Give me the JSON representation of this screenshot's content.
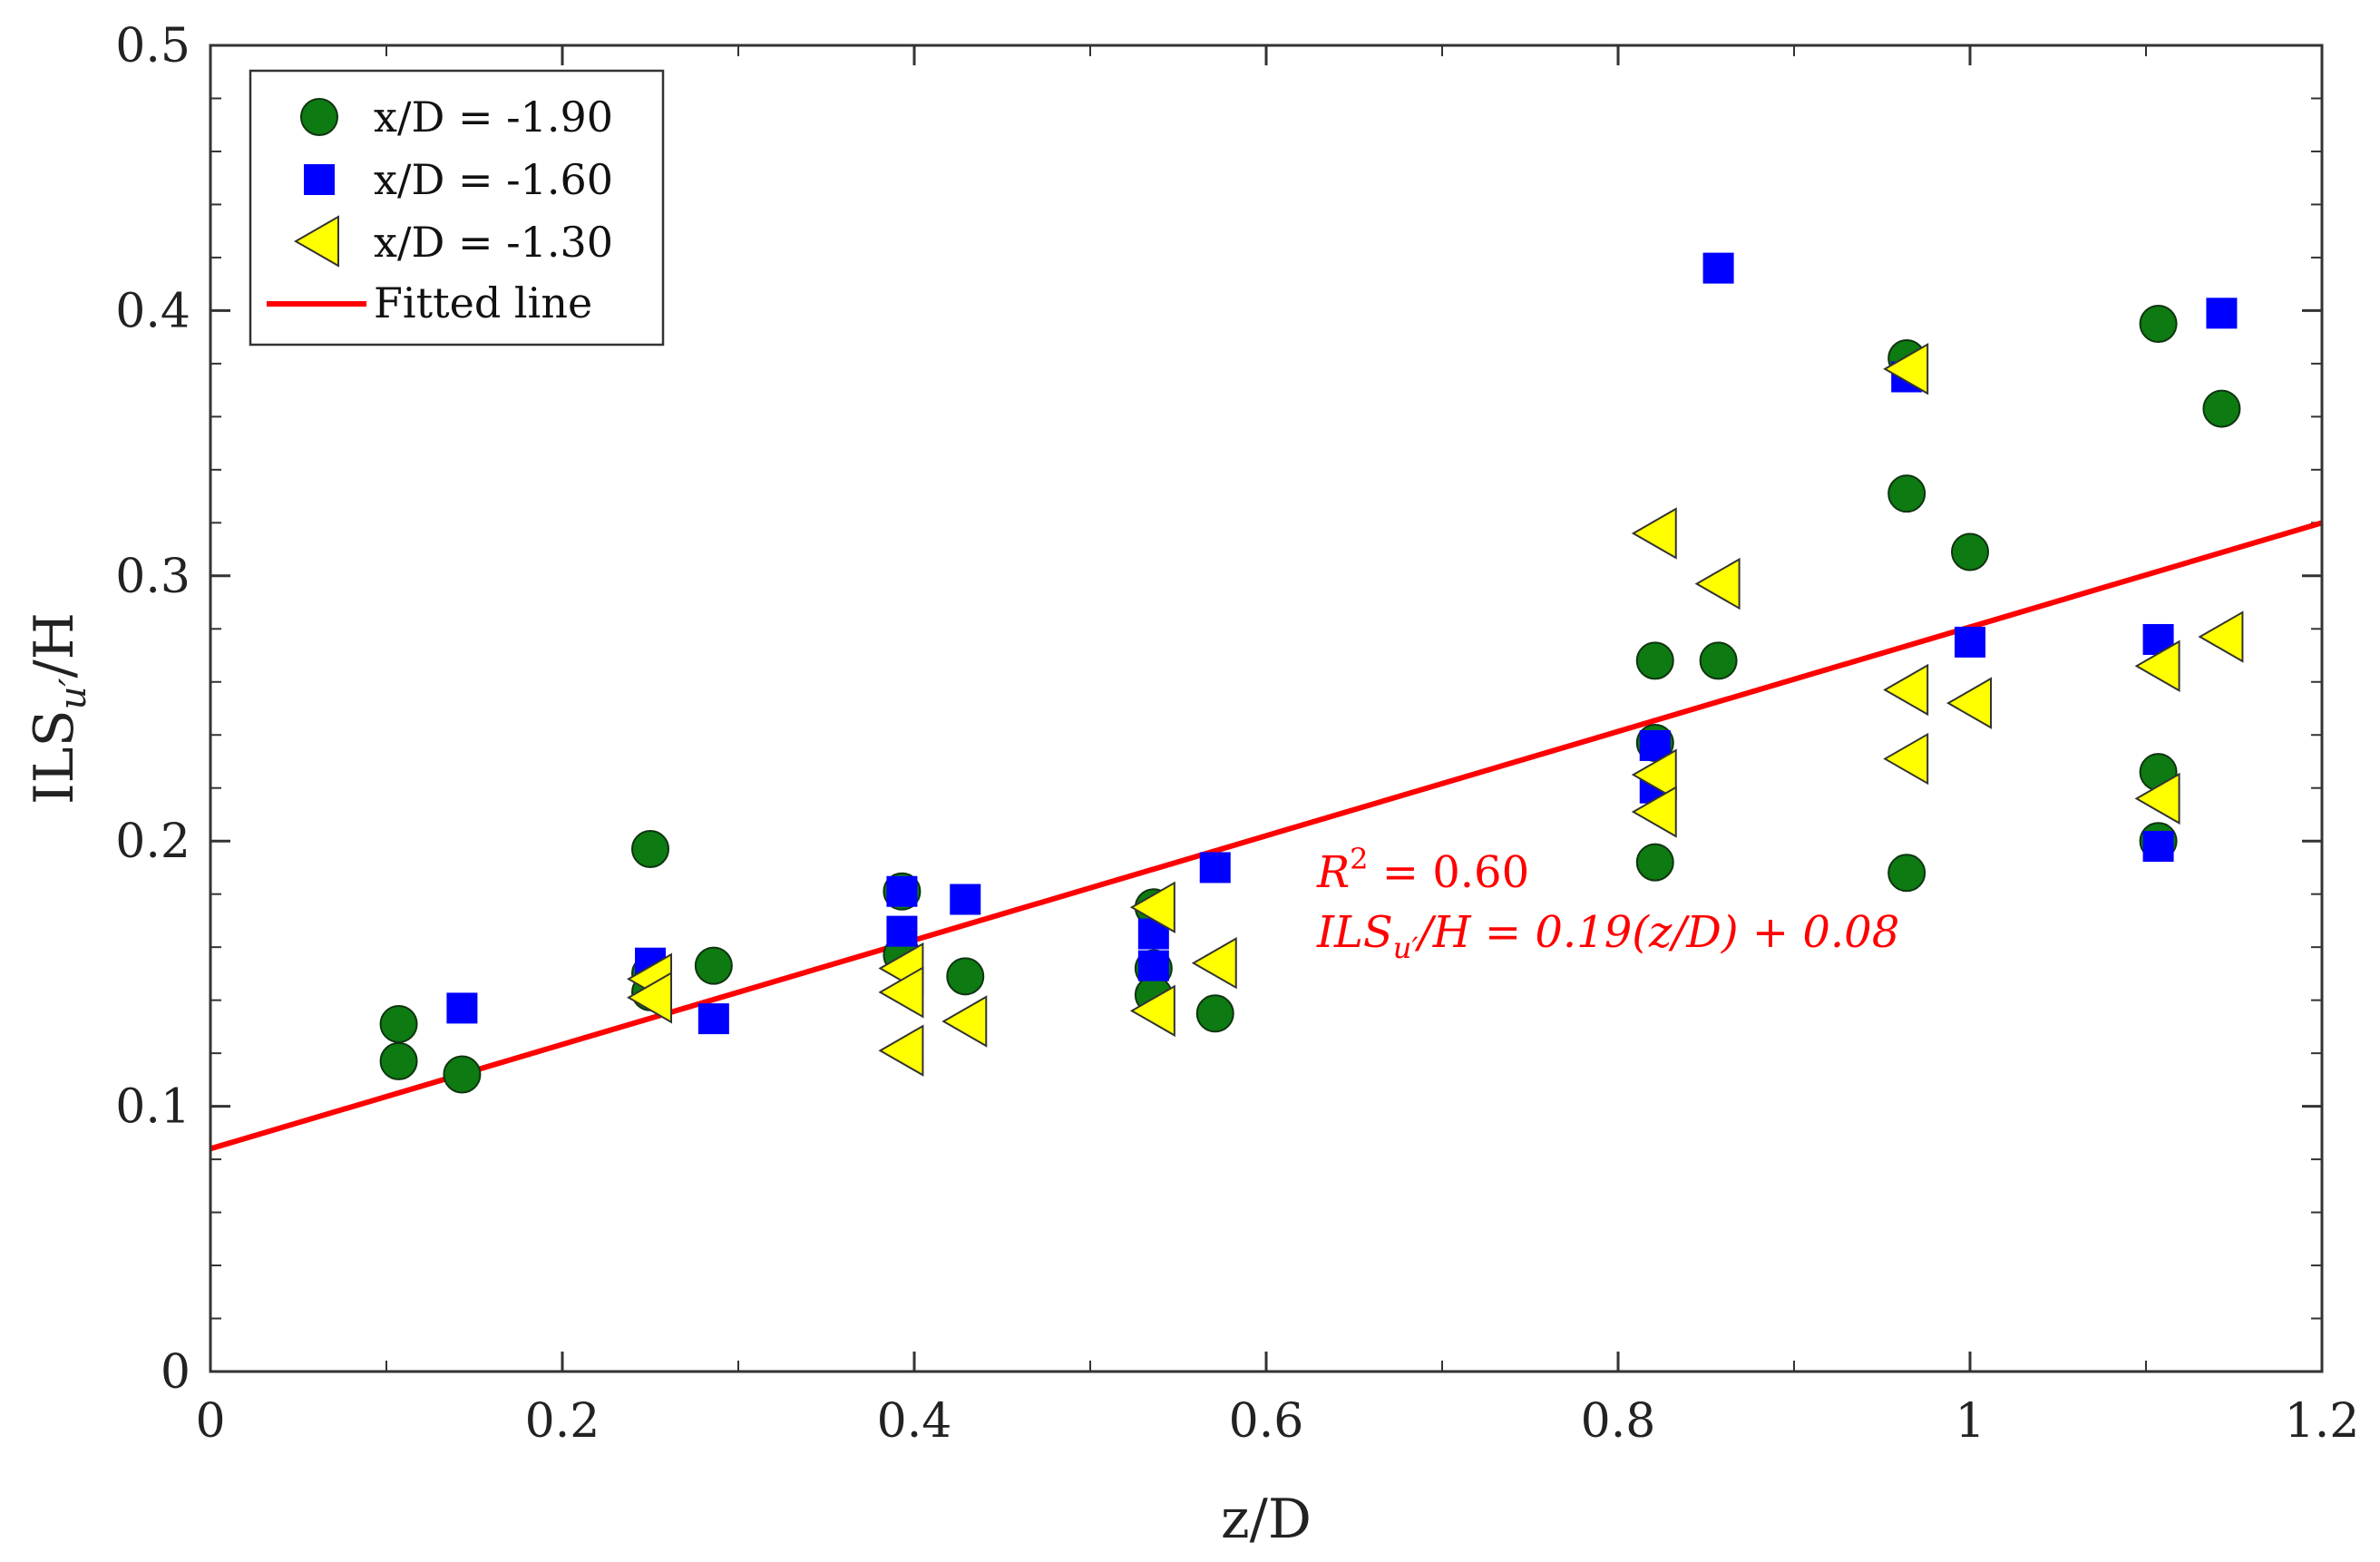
{
  "chart_data": {
    "type": "scatter",
    "title": "",
    "xlabel": "z/D",
    "ylabel_main": "ILS",
    "ylabel_sub": "u′",
    "ylabel_tail": "/H",
    "xlim": [
      0,
      1.2
    ],
    "ylim": [
      0,
      0.5
    ],
    "xticks": [
      0,
      0.2,
      0.4,
      0.6,
      0.8,
      1,
      1.2
    ],
    "xtick_labels": [
      "0",
      "0.2",
      "0.4",
      "0.6",
      "0.8",
      "1",
      "1.2"
    ],
    "yticks": [
      0,
      0.1,
      0.2,
      0.3,
      0.4,
      0.5
    ],
    "ytick_labels": [
      "0",
      "0.1",
      "0.2",
      "0.3",
      "0.4",
      "0.5"
    ],
    "grid": false,
    "legend_position": "top-left",
    "series": [
      {
        "name": "x/D = -1.90",
        "marker": "circle",
        "color": "#0d7a12",
        "points": [
          [
            0.107,
            0.131
          ],
          [
            0.107,
            0.117
          ],
          [
            0.143,
            0.112
          ],
          [
            0.25,
            0.197
          ],
          [
            0.25,
            0.15
          ],
          [
            0.25,
            0.143
          ],
          [
            0.286,
            0.153
          ],
          [
            0.393,
            0.181
          ],
          [
            0.393,
            0.157
          ],
          [
            0.429,
            0.149
          ],
          [
            0.536,
            0.175
          ],
          [
            0.536,
            0.152
          ],
          [
            0.536,
            0.142
          ],
          [
            0.571,
            0.135
          ],
          [
            0.821,
            0.268
          ],
          [
            0.821,
            0.237
          ],
          [
            0.821,
            0.192
          ],
          [
            0.857,
            0.268
          ],
          [
            0.964,
            0.382
          ],
          [
            0.964,
            0.331
          ],
          [
            0.964,
            0.188
          ],
          [
            1.0,
            0.309
          ],
          [
            1.107,
            0.395
          ],
          [
            1.107,
            0.226
          ],
          [
            1.107,
            0.2
          ],
          [
            1.143,
            0.363
          ]
        ]
      },
      {
        "name": "x/D = -1.60",
        "marker": "square",
        "color": "#0000ff",
        "points": [
          [
            0.143,
            0.137
          ],
          [
            0.25,
            0.154
          ],
          [
            0.286,
            0.133
          ],
          [
            0.393,
            0.181
          ],
          [
            0.393,
            0.166
          ],
          [
            0.429,
            0.178
          ],
          [
            0.536,
            0.165
          ],
          [
            0.536,
            0.153
          ],
          [
            0.571,
            0.19
          ],
          [
            0.821,
            0.236
          ],
          [
            0.821,
            0.22
          ],
          [
            0.857,
            0.416
          ],
          [
            0.964,
            0.375
          ],
          [
            1.0,
            0.275
          ],
          [
            1.107,
            0.276
          ],
          [
            1.107,
            0.198
          ],
          [
            1.143,
            0.399
          ]
        ]
      },
      {
        "name": "x/D = -1.30",
        "marker": "triangle-left",
        "color": "#ffff00",
        "points": [
          [
            0.25,
            0.148
          ],
          [
            0.25,
            0.141
          ],
          [
            0.393,
            0.152
          ],
          [
            0.393,
            0.143
          ],
          [
            0.393,
            0.121
          ],
          [
            0.429,
            0.132
          ],
          [
            0.536,
            0.175
          ],
          [
            0.536,
            0.136
          ],
          [
            0.571,
            0.154
          ],
          [
            0.821,
            0.316
          ],
          [
            0.821,
            0.225
          ],
          [
            0.821,
            0.211
          ],
          [
            0.857,
            0.297
          ],
          [
            0.964,
            0.378
          ],
          [
            0.964,
            0.257
          ],
          [
            0.964,
            0.231
          ],
          [
            1.0,
            0.252
          ],
          [
            1.107,
            0.266
          ],
          [
            1.107,
            0.216
          ],
          [
            1.143,
            0.277
          ]
        ]
      }
    ],
    "fitted_line": {
      "name": "Fitted line",
      "color": "#ff0000",
      "x": [
        0,
        1.2
      ],
      "y": [
        0.084,
        0.32
      ]
    },
    "annotation": {
      "r2_symbol": "R",
      "r2_power": "2",
      "r2_rest": " = 0.60",
      "eq_prefix": "ILS",
      "eq_sub": "u′",
      "eq_rest": "/H = 0.19(z/D) + 0.08",
      "color": "#ff0000"
    }
  }
}
